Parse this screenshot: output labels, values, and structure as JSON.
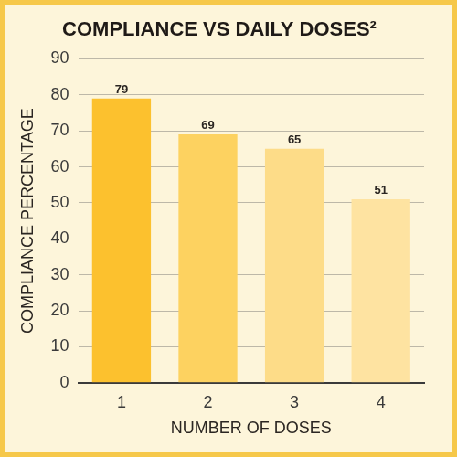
{
  "chart_data": {
    "type": "bar",
    "title": "COMPLIANCE VS DAILY DOSES²",
    "x_label": "NUMBER OF DOSES",
    "y_label": "COMPLIANCE PERCENTAGE",
    "categories": [
      "1",
      "2",
      "3",
      "4"
    ],
    "values": [
      79,
      69,
      65,
      51
    ],
    "colors": [
      "#fcc12e",
      "#fdd260",
      "#fddc88",
      "#fee3a1"
    ],
    "ylim": [
      0,
      90
    ],
    "yticks": [
      0,
      10,
      20,
      30,
      40,
      50,
      60,
      70,
      80,
      90
    ],
    "grid": true,
    "data_labels": true
  }
}
